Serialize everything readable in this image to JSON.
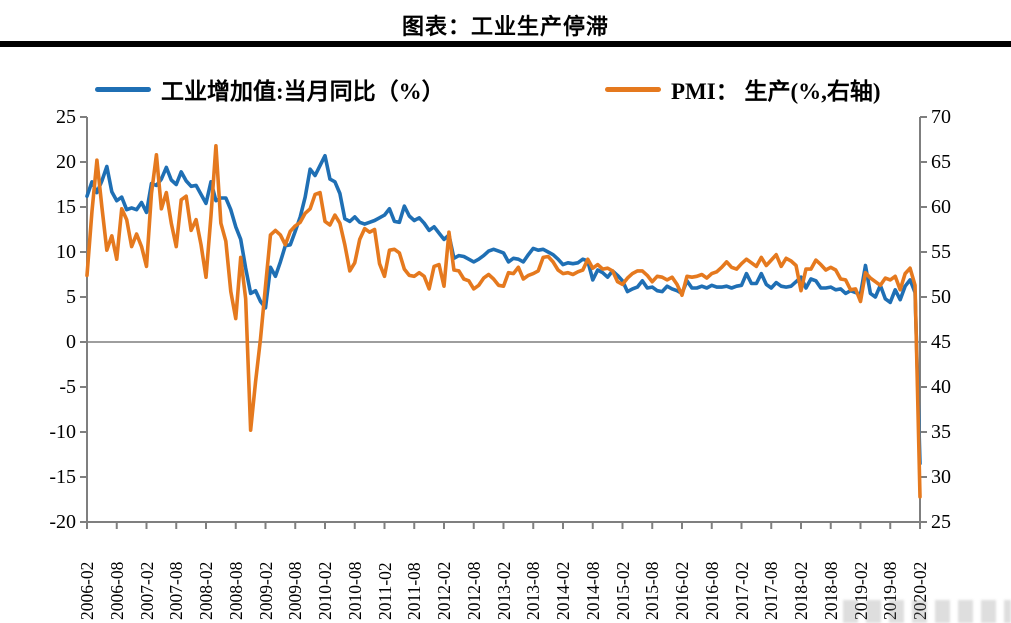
{
  "header": {
    "title": "图表：工业生产停滞"
  },
  "legend": [
    {
      "label": "工业增加值:当月同比（%）",
      "color": "#1F6FB4"
    },
    {
      "label": "PMI： 生产(%,右轴)",
      "color": "#E5791E"
    }
  ],
  "chart_data": {
    "type": "line",
    "title": "图表：工业生产停滞",
    "x_start": "2006-02",
    "x_end": "2020-02",
    "x_frequency": "monthly",
    "x_tick_labels": [
      "2006-02",
      "2006-08",
      "2007-02",
      "2007-08",
      "2008-02",
      "2008-08",
      "2009-02",
      "2009-08",
      "2010-02",
      "2010-08",
      "2011-02",
      "2011-08",
      "2012-02",
      "2012-08",
      "2013-02",
      "2013-08",
      "2014-02",
      "2014-08",
      "2015-02",
      "2015-08",
      "2016-02",
      "2016-08",
      "2017-02",
      "2017-08",
      "2018-02",
      "2018-08",
      "2019-02",
      "2019-08",
      "2020-02"
    ],
    "left_axis": {
      "min": -20,
      "max": 25,
      "ticks": [
        "25",
        "20",
        "15",
        "10",
        "5",
        "0",
        "-5",
        "-10",
        "-15",
        "-20"
      ]
    },
    "right_axis": {
      "min": 25,
      "max": 70,
      "ticks": [
        "70",
        "65",
        "60",
        "55",
        "50",
        "45",
        "40",
        "35",
        "30",
        "25"
      ]
    },
    "grid": "zero-line-only",
    "zero_line_left_value": 0,
    "axis_color": "#7F7F7F",
    "legend_position": "top",
    "series": [
      {
        "name": "工业增加值:当月同比（%）",
        "axis": "left",
        "color": "#1F6FB4",
        "values": [
          16.2,
          17.8,
          16.6,
          17.9,
          19.5,
          16.7,
          15.7,
          16.1,
          14.7,
          14.9,
          14.7,
          15.5,
          14.4,
          17.6,
          17.4,
          18.1,
          19.4,
          18.0,
          17.5,
          18.9,
          17.9,
          17.3,
          17.4,
          16.4,
          15.4,
          17.8,
          15.7,
          16.0,
          16.0,
          14.7,
          12.8,
          11.4,
          8.2,
          5.4,
          5.7,
          4.5,
          3.8,
          8.3,
          7.3,
          8.9,
          10.7,
          10.8,
          12.3,
          13.9,
          16.1,
          19.2,
          18.5,
          19.6,
          20.7,
          18.1,
          17.8,
          16.5,
          13.7,
          13.4,
          13.9,
          13.3,
          13.1,
          13.3,
          13.5,
          13.8,
          14.1,
          14.8,
          13.4,
          13.3,
          15.1,
          14.0,
          13.5,
          13.8,
          13.2,
          12.4,
          12.8,
          12.1,
          11.4,
          11.9,
          9.3,
          9.6,
          9.5,
          9.2,
          8.9,
          9.2,
          9.6,
          10.1,
          10.3,
          10.1,
          9.9,
          8.9,
          9.3,
          9.2,
          8.9,
          9.7,
          10.4,
          10.2,
          10.3,
          10.0,
          9.7,
          9.2,
          8.6,
          8.8,
          8.7,
          8.8,
          9.2,
          9.0,
          6.9,
          8.0,
          7.7,
          7.2,
          7.9,
          7.4,
          6.8,
          5.6,
          5.9,
          6.1,
          6.8,
          6.0,
          6.1,
          5.7,
          5.6,
          6.2,
          5.9,
          5.7,
          5.4,
          6.8,
          6.0,
          6.0,
          6.2,
          6.0,
          6.3,
          6.1,
          6.1,
          6.2,
          6.0,
          6.2,
          6.3,
          7.6,
          6.5,
          6.5,
          7.6,
          6.4,
          6.0,
          6.6,
          6.2,
          6.1,
          6.2,
          6.7,
          7.2,
          6.0,
          7.0,
          6.8,
          6.0,
          6.0,
          6.1,
          5.8,
          5.9,
          5.4,
          5.7,
          5.5,
          5.3,
          8.5,
          5.4,
          5.0,
          6.3,
          4.8,
          4.4,
          5.8,
          4.7,
          6.2,
          6.9,
          5.5,
          -13.5
        ]
      },
      {
        "name": "PMI： 生产(%,右轴)",
        "axis": "right",
        "color": "#E5791E",
        "values": [
          52.4,
          59.5,
          65.2,
          60.0,
          55.2,
          56.8,
          54.2,
          59.8,
          58.6,
          55.6,
          57.0,
          55.6,
          53.4,
          61.5,
          65.8,
          59.8,
          61.6,
          58.2,
          55.6,
          60.8,
          61.2,
          57.4,
          58.6,
          55.8,
          52.2,
          59.0,
          66.8,
          58.2,
          56.2,
          50.6,
          47.6,
          54.4,
          49.8,
          35.2,
          40.6,
          45.4,
          51.2,
          56.9,
          57.4,
          56.9,
          55.8,
          57.3,
          57.9,
          58.3,
          59.3,
          59.8,
          61.4,
          61.6,
          58.4,
          58.0,
          59.1,
          58.2,
          55.8,
          52.9,
          53.8,
          56.4,
          57.6,
          57.2,
          57.5,
          53.7,
          52.3,
          55.2,
          55.3,
          54.9,
          53.1,
          52.4,
          52.3,
          52.7,
          52.3,
          50.9,
          53.4,
          53.6,
          51.2,
          57.2,
          53.0,
          52.9,
          52.0,
          51.8,
          50.9,
          51.3,
          52.1,
          52.5,
          52.0,
          51.3,
          51.2,
          52.7,
          52.6,
          53.3,
          52.0,
          52.4,
          52.6,
          52.9,
          54.4,
          54.5,
          53.9,
          53.0,
          52.6,
          52.7,
          52.5,
          52.8,
          53.0,
          54.2,
          53.2,
          53.6,
          53.1,
          53.2,
          52.9,
          51.7,
          51.4,
          52.1,
          52.6,
          52.9,
          52.9,
          52.4,
          51.7,
          52.3,
          52.2,
          51.9,
          52.2,
          51.4,
          50.2,
          52.3,
          52.2,
          52.3,
          52.5,
          52.1,
          52.6,
          52.8,
          53.3,
          53.9,
          53.3,
          53.1,
          53.7,
          54.2,
          53.8,
          53.4,
          54.4,
          53.5,
          54.1,
          54.7,
          53.4,
          54.3,
          54.0,
          53.5,
          50.7,
          53.1,
          53.1,
          54.1,
          53.6,
          53.0,
          53.3,
          53.0,
          52.0,
          51.9,
          50.8,
          50.9,
          49.5,
          52.7,
          52.1,
          51.7,
          51.3,
          52.1,
          51.9,
          52.3,
          50.8,
          52.6,
          53.2,
          51.3,
          27.8
        ]
      }
    ]
  }
}
